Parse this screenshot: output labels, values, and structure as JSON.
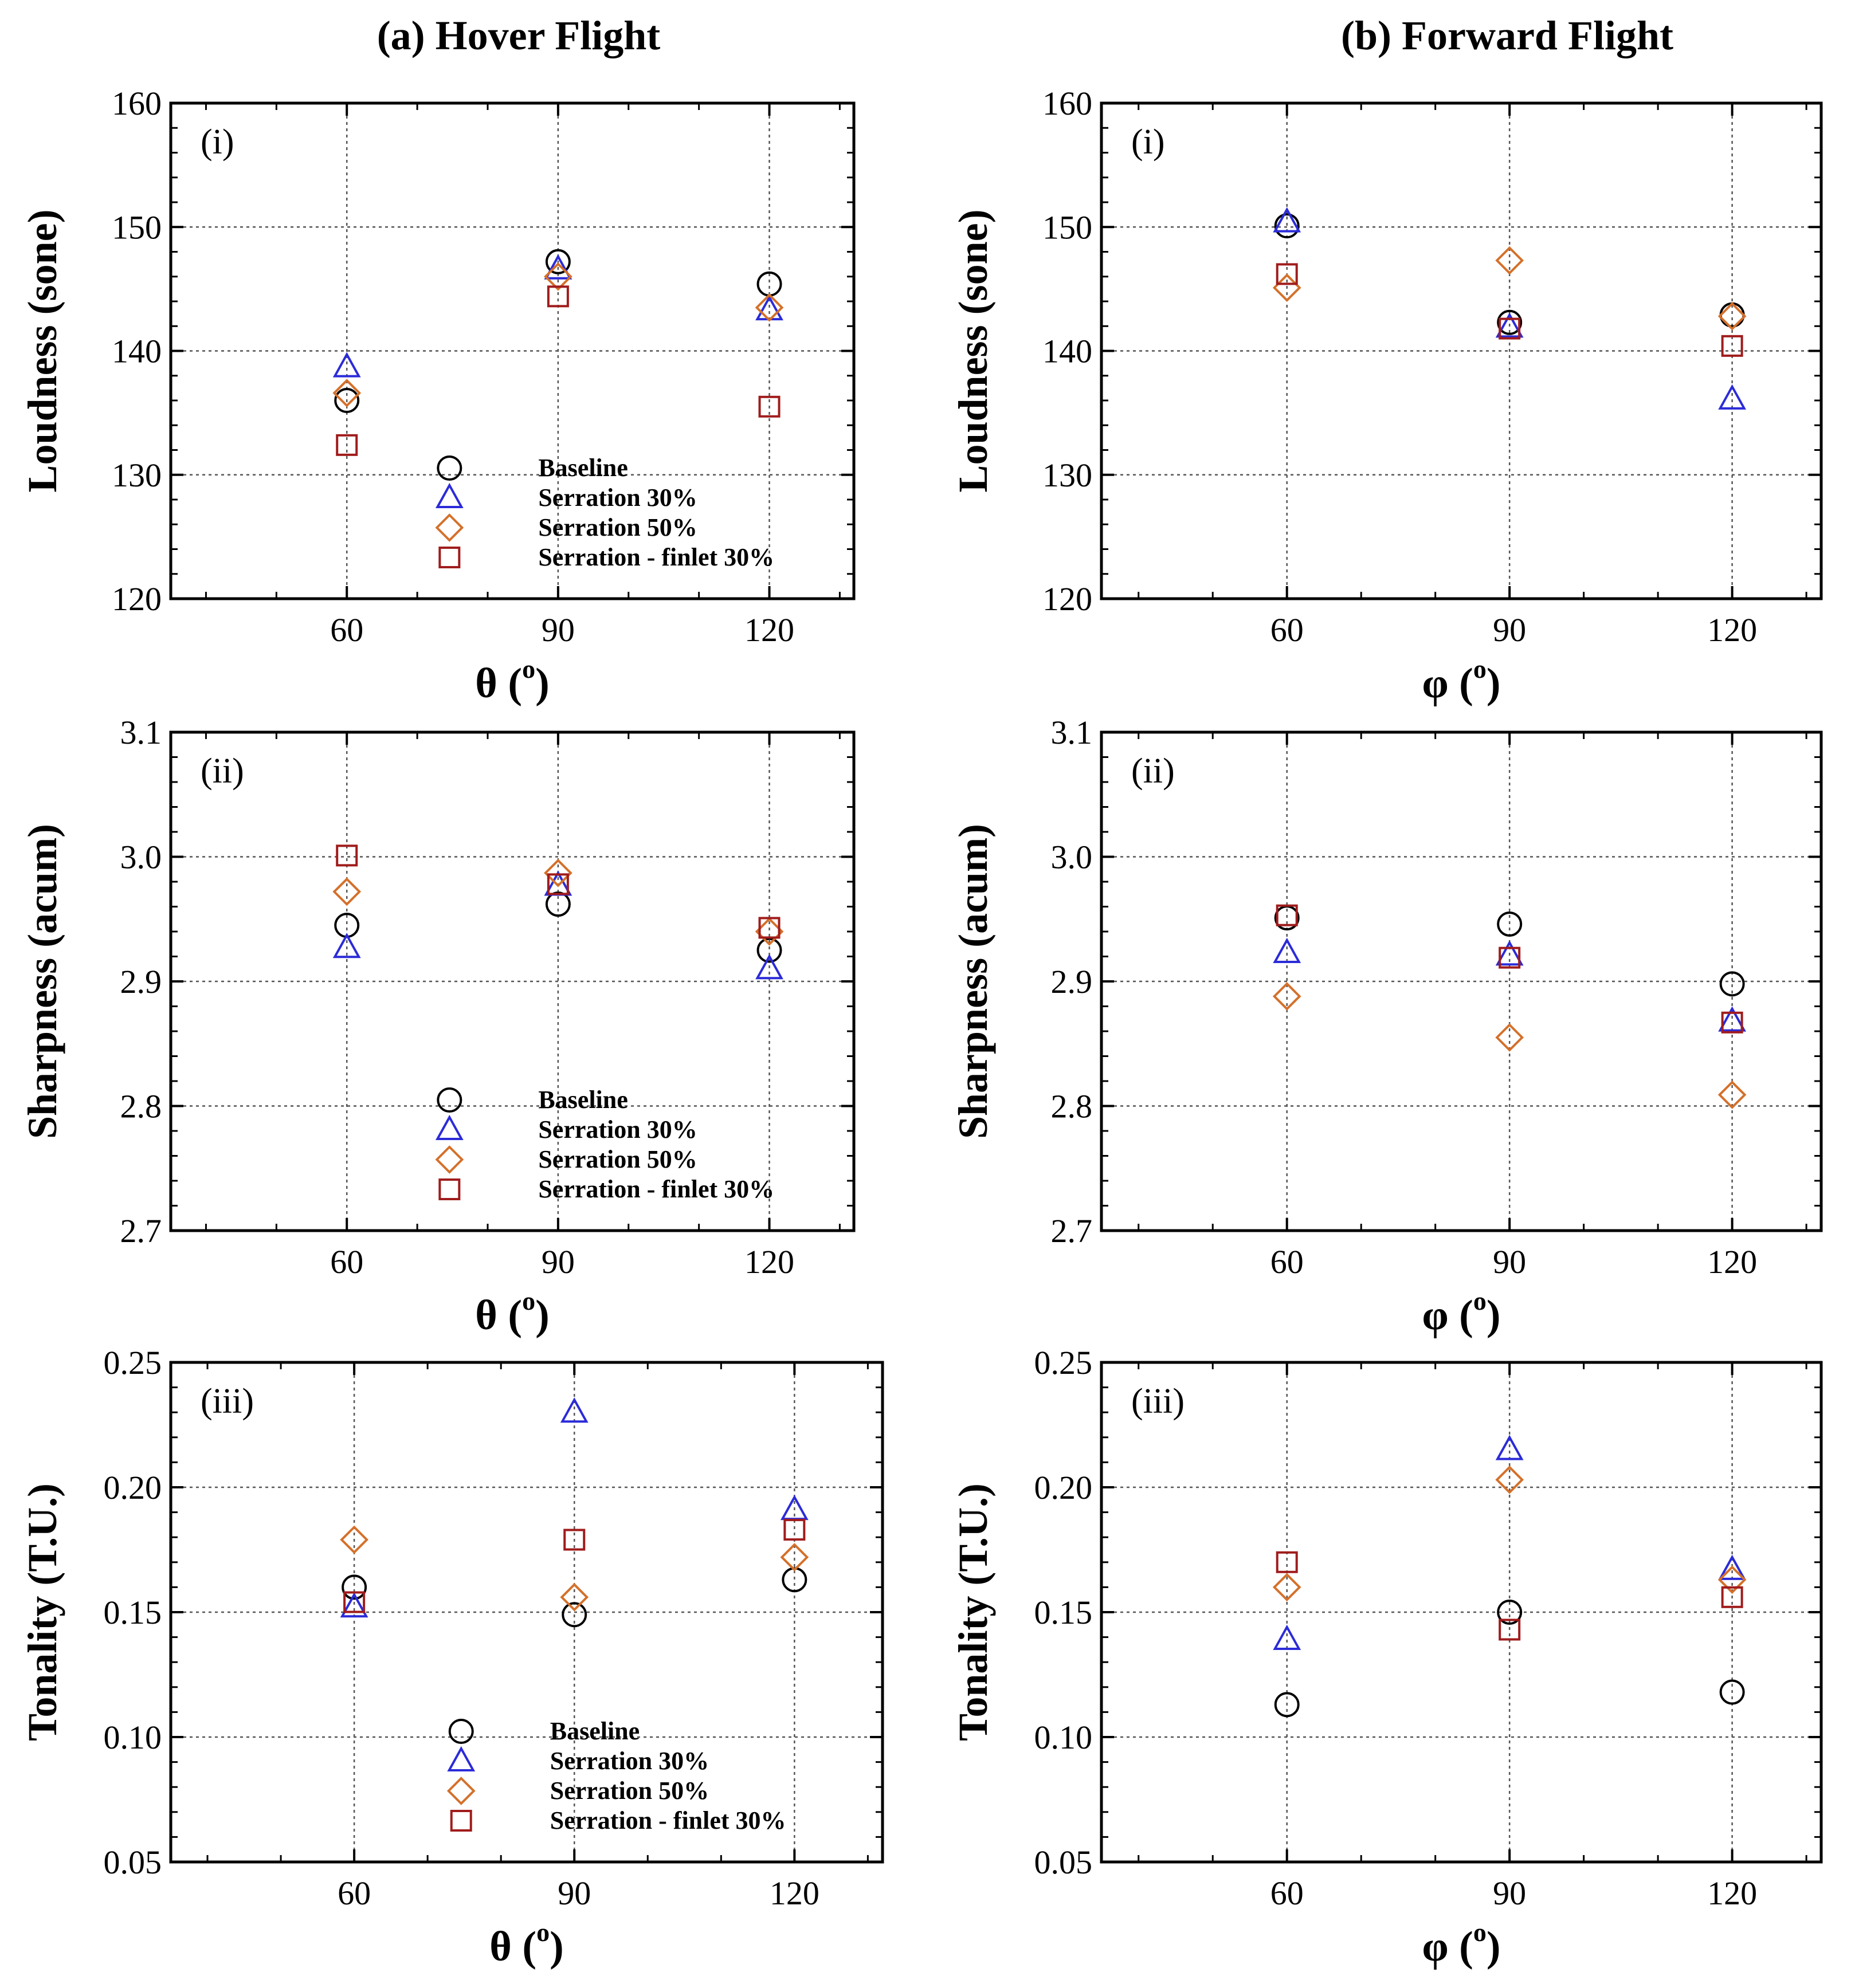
{
  "column_titles": [
    "(a) Hover Flight",
    "(b) Forward Flight"
  ],
  "series_styles": [
    {
      "name": "Baseline",
      "marker": "circle",
      "color": "#000000"
    },
    {
      "name": "Serration 30%",
      "marker": "triangle",
      "color": "#2b2bd9"
    },
    {
      "name": "Serration 50%",
      "marker": "diamond",
      "color": "#d4702a"
    },
    {
      "name": "Serration - finlet 30%",
      "marker": "square",
      "color": "#a01c1c"
    }
  ],
  "chart_data": [
    {
      "type": "scatter",
      "id": "hover-loudness",
      "column": "(a) Hover Flight",
      "panel": "(i)",
      "xlabel": "θ",
      "xlabel_unit": "o",
      "ylabel": "Loudness (sone)",
      "xlim": [
        35,
        132
      ],
      "ylim": [
        120,
        160
      ],
      "xticks": [
        60,
        90,
        120
      ],
      "yticks": [
        120,
        130,
        140,
        150,
        160
      ],
      "ytick_labels": [
        "120",
        "130",
        "140",
        "150",
        "160"
      ],
      "grid": true,
      "legend": true,
      "legend_position": "bottom-center",
      "x": [
        60,
        90,
        120
      ],
      "series": [
        {
          "name": "Baseline",
          "values": [
            136.0,
            147.2,
            145.4
          ]
        },
        {
          "name": "Serration 30%",
          "values": [
            138.7,
            146.6,
            143.3
          ]
        },
        {
          "name": "Serration 50%",
          "values": [
            136.6,
            146.0,
            143.5
          ]
        },
        {
          "name": "Serration - finlet 30%",
          "values": [
            132.4,
            144.4,
            135.5
          ]
        }
      ]
    },
    {
      "type": "scatter",
      "id": "forward-loudness",
      "column": "(b) Forward Flight",
      "panel": "(i)",
      "xlabel": "φ",
      "xlabel_unit": "o",
      "ylabel": "Loudness (sone)",
      "xlim": [
        35,
        132
      ],
      "ylim": [
        120,
        160
      ],
      "xticks": [
        60,
        90,
        120
      ],
      "yticks": [
        120,
        130,
        140,
        150,
        160
      ],
      "ytick_labels": [
        "120",
        "130",
        "140",
        "150",
        "160"
      ],
      "grid": true,
      "legend": false,
      "x": [
        60,
        90,
        120
      ],
      "series": [
        {
          "name": "Baseline",
          "values": [
            150.1,
            142.3,
            142.9
          ]
        },
        {
          "name": "Serration 30%",
          "values": [
            150.4,
            141.9,
            136.1
          ]
        },
        {
          "name": "Serration 50%",
          "values": [
            145.1,
            147.3,
            142.8
          ]
        },
        {
          "name": "Serration - finlet 30%",
          "values": [
            146.2,
            141.8,
            140.4
          ]
        }
      ]
    },
    {
      "type": "scatter",
      "id": "hover-sharpness",
      "column": "(a) Hover Flight",
      "panel": "(ii)",
      "xlabel": "θ",
      "xlabel_unit": "o",
      "ylabel": "Sharpness (acum)",
      "xlim": [
        35,
        132
      ],
      "ylim": [
        2.7,
        3.1
      ],
      "xticks": [
        60,
        90,
        120
      ],
      "yticks": [
        2.7,
        2.8,
        2.9,
        3.0,
        3.1
      ],
      "ytick_labels": [
        "2.7",
        "2.8",
        "2.9",
        "3.0",
        "3.1"
      ],
      "grid": true,
      "legend": true,
      "legend_position": "bottom-center",
      "x": [
        60,
        90,
        120
      ],
      "series": [
        {
          "name": "Baseline",
          "values": [
            2.945,
            2.962,
            2.925
          ]
        },
        {
          "name": "Serration 30%",
          "values": [
            2.927,
            2.977,
            2.91
          ]
        },
        {
          "name": "Serration 50%",
          "values": [
            2.972,
            2.987,
            2.94
          ]
        },
        {
          "name": "Serration - finlet 30%",
          "values": [
            3.001,
            2.978,
            2.943
          ]
        }
      ]
    },
    {
      "type": "scatter",
      "id": "forward-sharpness",
      "column": "(b) Forward Flight",
      "panel": "(ii)",
      "xlabel": "φ",
      "xlabel_unit": "o",
      "ylabel": "Sharpness (acum)",
      "xlim": [
        35,
        132
      ],
      "ylim": [
        2.7,
        3.1
      ],
      "xticks": [
        60,
        90,
        120
      ],
      "yticks": [
        2.7,
        2.8,
        2.9,
        3.0,
        3.1
      ],
      "ytick_labels": [
        "2.7",
        "2.8",
        "2.9",
        "3.0",
        "3.1"
      ],
      "grid": true,
      "legend": false,
      "x": [
        60,
        90,
        120
      ],
      "series": [
        {
          "name": "Baseline",
          "values": [
            2.951,
            2.946,
            2.898
          ]
        },
        {
          "name": "Serration 30%",
          "values": [
            2.923,
            2.921,
            2.868
          ]
        },
        {
          "name": "Serration 50%",
          "values": [
            2.888,
            2.855,
            2.809
          ]
        },
        {
          "name": "Serration - finlet 30%",
          "values": [
            2.953,
            2.919,
            2.867
          ]
        }
      ]
    },
    {
      "type": "scatter",
      "id": "hover-tonality",
      "column": "(a) Hover Flight",
      "panel": "(iii)",
      "xlabel": "θ",
      "xlabel_unit": "o",
      "ylabel": "Tonality (T.U.)",
      "xlim": [
        35,
        132
      ],
      "ylim": [
        0.05,
        0.25
      ],
      "xticks": [
        60,
        90,
        120
      ],
      "yticks": [
        0.05,
        0.1,
        0.15,
        0.2,
        0.25
      ],
      "ytick_labels": [
        "0.05",
        "0.10",
        "0.15",
        "0.20",
        "0.25"
      ],
      "grid": true,
      "legend": true,
      "legend_position": "bottom-center",
      "x": [
        60,
        90,
        120
      ],
      "series": [
        {
          "name": "Baseline",
          "values": [
            0.16,
            0.149,
            0.163
          ]
        },
        {
          "name": "Serration 30%",
          "values": [
            0.152,
            0.23,
            0.191
          ]
        },
        {
          "name": "Serration 50%",
          "values": [
            0.179,
            0.156,
            0.172
          ]
        },
        {
          "name": "Serration - finlet 30%",
          "values": [
            0.154,
            0.179,
            0.183
          ]
        }
      ]
    },
    {
      "type": "scatter",
      "id": "forward-tonality",
      "column": "(b) Forward Flight",
      "panel": "(iii)",
      "xlabel": "φ",
      "xlabel_unit": "o",
      "ylabel": "Tonality (T.U.)",
      "xlim": [
        35,
        132
      ],
      "ylim": [
        0.05,
        0.25
      ],
      "xticks": [
        60,
        90,
        120
      ],
      "yticks": [
        0.05,
        0.1,
        0.15,
        0.2,
        0.25
      ],
      "ytick_labels": [
        "0.05",
        "0.10",
        "0.15",
        "0.20",
        "0.25"
      ],
      "grid": true,
      "legend": false,
      "x": [
        60,
        90,
        120
      ],
      "series": [
        {
          "name": "Baseline",
          "values": [
            0.113,
            0.15,
            0.118
          ]
        },
        {
          "name": "Serration 30%",
          "values": [
            0.139,
            0.215,
            0.167
          ]
        },
        {
          "name": "Serration 50%",
          "values": [
            0.16,
            0.203,
            0.163
          ]
        },
        {
          "name": "Serration - finlet 30%",
          "values": [
            0.17,
            0.143,
            0.156
          ]
        }
      ]
    }
  ]
}
